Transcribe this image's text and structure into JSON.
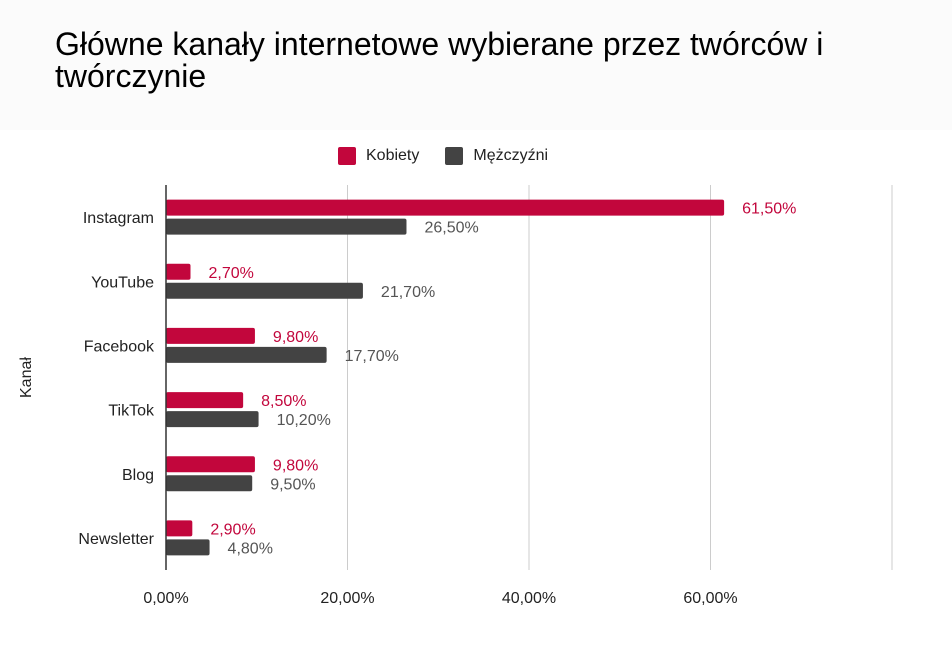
{
  "title": "Główne kanały internetowe wybierane przez twórców i twórczynie",
  "chart_data": {
    "type": "bar",
    "orientation": "horizontal",
    "title": "Główne kanały internetowe wybierane przez twórców i twórczynie",
    "ylabel": "Kanał",
    "xlabel": "",
    "categories": [
      "Instagram",
      "YouTube",
      "Facebook",
      "TikTok",
      "Blog",
      "Newsletter"
    ],
    "series": [
      {
        "name": "Kobiety",
        "color": "#c2063c",
        "values": [
          61.5,
          2.7,
          9.8,
          8.5,
          9.8,
          2.9
        ],
        "labels": [
          "61,50%",
          "2,70%",
          "9,80%",
          "8,50%",
          "9,80%",
          "2,90%"
        ]
      },
      {
        "name": "Mężczyźni",
        "color": "#434343",
        "values": [
          26.5,
          21.7,
          17.7,
          10.2,
          9.5,
          4.8
        ],
        "labels": [
          "26,50%",
          "21,70%",
          "17,70%",
          "10,20%",
          "9,50%",
          "4,80%"
        ]
      }
    ],
    "xlim": [
      0,
      80
    ],
    "x_ticks": [
      0,
      20,
      40,
      60
    ],
    "x_tick_labels": [
      "0,00%",
      "20,00%",
      "40,00%",
      "60,00%"
    ],
    "grid": true,
    "legend_position": "top-center",
    "label_colors": [
      "#c2063c",
      "#555555"
    ]
  }
}
